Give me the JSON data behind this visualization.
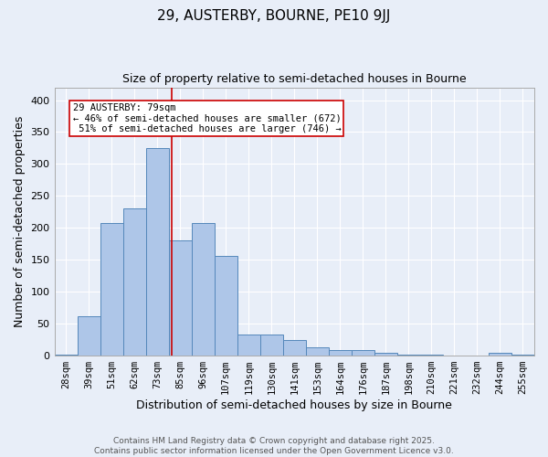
{
  "title": "29, AUSTERBY, BOURNE, PE10 9JJ",
  "subtitle": "Size of property relative to semi-detached houses in Bourne",
  "xlabel": "Distribution of semi-detached houses by size in Bourne",
  "ylabel": "Number of semi-detached properties",
  "categories": [
    "28sqm",
    "39sqm",
    "51sqm",
    "62sqm",
    "73sqm",
    "85sqm",
    "96sqm",
    "107sqm",
    "119sqm",
    "130sqm",
    "141sqm",
    "153sqm",
    "164sqm",
    "176sqm",
    "187sqm",
    "198sqm",
    "210sqm",
    "221sqm",
    "232sqm",
    "244sqm",
    "255sqm"
  ],
  "values": [
    2,
    62,
    208,
    230,
    325,
    181,
    207,
    156,
    33,
    33,
    24,
    13,
    9,
    9,
    5,
    1,
    1,
    0,
    0,
    4,
    2
  ],
  "bar_color": "#aec6e8",
  "bar_edge_color": "#5588bb",
  "background_color": "#e8eef8",
  "grid_color": "#ffffff",
  "property_label": "29 AUSTERBY: 79sqm",
  "pct_smaller": 46,
  "pct_smaller_count": 672,
  "pct_larger": 51,
  "pct_larger_count": 746,
  "annotation_box_color": "#ffffff",
  "annotation_box_edge": "#cc0000",
  "vline_color": "#cc0000",
  "vline_x": 4.63,
  "ylim": [
    0,
    420
  ],
  "yticks": [
    0,
    50,
    100,
    150,
    200,
    250,
    300,
    350,
    400
  ],
  "footer": "Contains HM Land Registry data © Crown copyright and database right 2025.\nContains public sector information licensed under the Open Government Licence v3.0.",
  "title_fontsize": 11,
  "subtitle_fontsize": 9,
  "axis_label_fontsize": 9,
  "tick_fontsize": 7.5,
  "annotation_fontsize": 7.5,
  "footer_fontsize": 6.5
}
